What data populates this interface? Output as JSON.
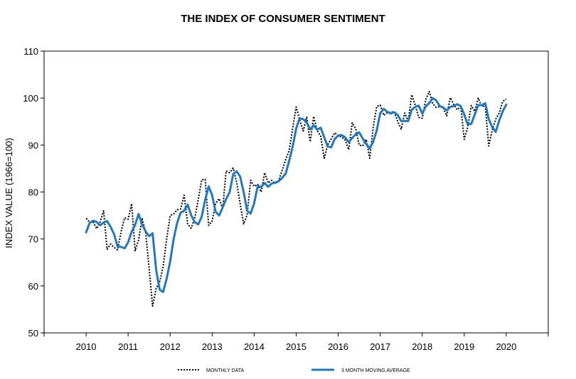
{
  "chart_data": {
    "type": "line",
    "title": "THE INDEX OF CONSUMER SENTIMENT",
    "xlabel": "",
    "ylabel": "INDEX VALUE (1966=100)",
    "xlim": [
      2009,
      2021
    ],
    "ylim": [
      50,
      110
    ],
    "x_ticks": [
      "2010",
      "2011",
      "2012",
      "2013",
      "2014",
      "2015",
      "2016",
      "2017",
      "2018",
      "2019",
      "2020"
    ],
    "y_ticks": [
      50,
      60,
      70,
      80,
      90,
      100,
      110
    ],
    "grid": false,
    "legend_position": "bottom",
    "colors": {
      "monthly": "#000000",
      "moving_average": "#1f78c0"
    },
    "series": [
      {
        "name": "MONTHLY DATA",
        "style": "dotted",
        "x": [
          2010.0,
          2010.083,
          2010.167,
          2010.25,
          2010.333,
          2010.417,
          2010.5,
          2010.583,
          2010.667,
          2010.75,
          2010.833,
          2010.917,
          2011.0,
          2011.083,
          2011.167,
          2011.25,
          2011.333,
          2011.417,
          2011.5,
          2011.583,
          2011.667,
          2011.75,
          2011.833,
          2011.917,
          2012.0,
          2012.083,
          2012.167,
          2012.25,
          2012.333,
          2012.417,
          2012.5,
          2012.583,
          2012.667,
          2012.75,
          2012.833,
          2012.917,
          2013.0,
          2013.083,
          2013.167,
          2013.25,
          2013.333,
          2013.417,
          2013.5,
          2013.583,
          2013.667,
          2013.75,
          2013.833,
          2013.917,
          2014.0,
          2014.083,
          2014.167,
          2014.25,
          2014.333,
          2014.417,
          2014.5,
          2014.583,
          2014.667,
          2014.75,
          2014.833,
          2014.917,
          2015.0,
          2015.083,
          2015.167,
          2015.25,
          2015.333,
          2015.417,
          2015.5,
          2015.583,
          2015.667,
          2015.75,
          2015.833,
          2015.917,
          2016.0,
          2016.083,
          2016.167,
          2016.25,
          2016.333,
          2016.417,
          2016.5,
          2016.583,
          2016.667,
          2016.75,
          2016.833,
          2016.917,
          2017.0,
          2017.083,
          2017.167,
          2017.25,
          2017.333,
          2017.417,
          2017.5,
          2017.583,
          2017.667,
          2017.75,
          2017.833,
          2017.917,
          2018.0,
          2018.083,
          2018.167,
          2018.25,
          2018.333,
          2018.417,
          2018.5,
          2018.583,
          2018.667,
          2018.75,
          2018.833,
          2018.917,
          2019.0,
          2019.083,
          2019.167,
          2019.25,
          2019.333,
          2019.417,
          2019.5,
          2019.583,
          2019.667,
          2019.75,
          2019.833,
          2019.917,
          2020.0
        ],
        "values": [
          74.4,
          73.6,
          73.6,
          72.2,
          73.6,
          76.0,
          67.8,
          68.9,
          68.2,
          67.7,
          71.6,
          74.5,
          74.2,
          77.5,
          67.5,
          69.8,
          74.3,
          71.5,
          63.7,
          55.7,
          59.5,
          60.8,
          64.1,
          69.9,
          75.0,
          75.3,
          76.2,
          76.4,
          79.3,
          73.2,
          72.3,
          74.3,
          78.3,
          82.6,
          82.7,
          72.9,
          73.8,
          77.6,
          78.6,
          76.4,
          84.5,
          84.1,
          85.1,
          82.1,
          77.5,
          73.2,
          75.1,
          82.5,
          81.2,
          81.6,
          80.0,
          84.1,
          81.9,
          82.5,
          81.8,
          82.5,
          84.6,
          86.9,
          88.8,
          93.6,
          98.1,
          95.4,
          93.0,
          95.9,
          90.7,
          96.1,
          93.1,
          91.9,
          87.2,
          90.0,
          91.3,
          92.6,
          92.0,
          91.7,
          91.0,
          89.0,
          94.7,
          93.5,
          90.0,
          89.8,
          91.2,
          87.2,
          93.8,
          98.2,
          98.5,
          96.3,
          96.9,
          97.0,
          97.1,
          95.0,
          93.4,
          96.8,
          95.1,
          100.7,
          98.5,
          95.9,
          95.7,
          99.7,
          101.4,
          98.8,
          98.0,
          98.2,
          97.9,
          96.2,
          100.1,
          98.6,
          97.5,
          98.3,
          91.2,
          93.8,
          98.4,
          97.2,
          100.0,
          98.2,
          98.4,
          89.8,
          93.2,
          95.5,
          96.8,
          99.3,
          99.8
        ]
      },
      {
        "name": "3 MONTH MOVING AVERAGE",
        "style": "solid",
        "x": [
          2010.0,
          2010.083,
          2010.167,
          2010.25,
          2010.333,
          2010.417,
          2010.5,
          2010.583,
          2010.667,
          2010.75,
          2010.833,
          2010.917,
          2011.0,
          2011.083,
          2011.167,
          2011.25,
          2011.333,
          2011.417,
          2011.5,
          2011.583,
          2011.667,
          2011.75,
          2011.833,
          2011.917,
          2012.0,
          2012.083,
          2012.167,
          2012.25,
          2012.333,
          2012.417,
          2012.5,
          2012.583,
          2012.667,
          2012.75,
          2012.833,
          2012.917,
          2013.0,
          2013.083,
          2013.167,
          2013.25,
          2013.333,
          2013.417,
          2013.5,
          2013.583,
          2013.667,
          2013.75,
          2013.833,
          2013.917,
          2014.0,
          2014.083,
          2014.167,
          2014.25,
          2014.333,
          2014.417,
          2014.5,
          2014.583,
          2014.667,
          2014.75,
          2014.833,
          2014.917,
          2015.0,
          2015.083,
          2015.167,
          2015.25,
          2015.333,
          2015.417,
          2015.5,
          2015.583,
          2015.667,
          2015.75,
          2015.833,
          2015.917,
          2016.0,
          2016.083,
          2016.167,
          2016.25,
          2016.333,
          2016.417,
          2016.5,
          2016.583,
          2016.667,
          2016.75,
          2016.833,
          2016.917,
          2017.0,
          2017.083,
          2017.167,
          2017.25,
          2017.333,
          2017.417,
          2017.5,
          2017.583,
          2017.667,
          2017.75,
          2017.833,
          2017.917,
          2018.0,
          2018.083,
          2018.167,
          2018.25,
          2018.333,
          2018.417,
          2018.5,
          2018.583,
          2018.667,
          2018.75,
          2018.833,
          2018.917,
          2019.0,
          2019.083,
          2019.167,
          2019.25,
          2019.333,
          2019.417,
          2019.5,
          2019.583,
          2019.667,
          2019.75,
          2019.833,
          2019.917,
          2020.0
        ],
        "values": [
          71.4,
          73.4,
          73.9,
          73.6,
          72.9,
          73.5,
          73.8,
          72.6,
          71.0,
          68.4,
          68.3,
          68.0,
          69.3,
          71.5,
          73.0,
          75.3,
          73.1,
          71.6,
          70.6,
          71.2,
          63.4,
          59.2,
          58.7,
          61.5,
          65.2,
          70.0,
          73.4,
          75.6,
          76.0,
          77.3,
          75.1,
          73.6,
          73.1,
          74.7,
          78.3,
          81.2,
          79.3,
          75.8,
          75.0,
          76.7,
          78.5,
          80.0,
          83.8,
          84.4,
          83.3,
          80.0,
          76.0,
          75.4,
          77.6,
          81.2,
          81.1,
          81.9,
          81.1,
          81.8,
          82.0,
          82.3,
          83.0,
          83.9,
          86.6,
          89.7,
          93.5,
          95.7,
          95.5,
          94.8,
          93.3,
          94.2,
          93.3,
          93.7,
          91.7,
          89.7,
          89.5,
          91.3,
          92.0,
          92.1,
          91.6,
          90.6,
          91.5,
          92.3,
          92.7,
          91.4,
          90.2,
          89.3,
          90.7,
          93.1,
          96.8,
          97.7,
          97.1,
          96.7,
          97.0,
          96.4,
          95.1,
          95.1,
          95.1,
          97.5,
          98.1,
          98.4,
          96.7,
          98.2,
          98.9,
          100.0,
          99.5,
          98.3,
          98.0,
          97.4,
          98.1,
          98.3,
          98.7,
          98.3,
          96.5,
          94.4,
          94.5,
          96.5,
          98.5,
          98.5,
          98.9,
          95.5,
          93.8,
          92.8,
          95.2,
          97.2,
          98.6
        ]
      }
    ]
  }
}
